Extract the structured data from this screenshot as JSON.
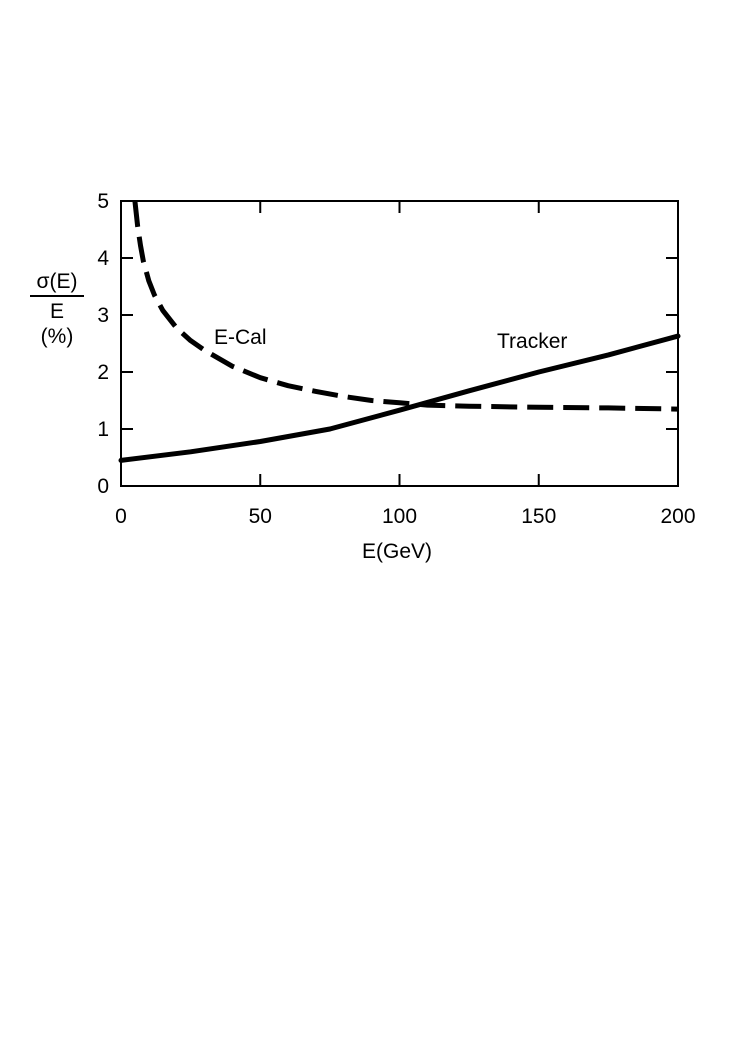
{
  "chart_data": {
    "type": "line",
    "xlabel": "E(GeV)",
    "ylabel": {
      "numerator": "σ(E)",
      "denominator": "E",
      "unit": "(%)"
    },
    "xlim": [
      0,
      200
    ],
    "ylim": [
      0,
      5
    ],
    "x_ticks": [
      "0",
      "50",
      "100",
      "150",
      "200"
    ],
    "y_ticks": [
      "0",
      "1",
      "2",
      "3",
      "4",
      "5"
    ],
    "grid": false,
    "series": [
      {
        "name": "E-Cal",
        "style": "dashed",
        "x": [
          5,
          6,
          7,
          8,
          10,
          12,
          15,
          20,
          25,
          30,
          40,
          50,
          60,
          70,
          80,
          90,
          100,
          110,
          125,
          150,
          175,
          200
        ],
        "y": [
          5.0,
          4.55,
          4.22,
          3.95,
          3.6,
          3.35,
          3.08,
          2.77,
          2.55,
          2.38,
          2.1,
          1.9,
          1.76,
          1.66,
          1.57,
          1.5,
          1.46,
          1.42,
          1.4,
          1.38,
          1.37,
          1.35
        ]
      },
      {
        "name": "Tracker",
        "style": "solid",
        "x": [
          0,
          25,
          50,
          75,
          100,
          125,
          150,
          175,
          200
        ],
        "y": [
          0.45,
          0.6,
          0.78,
          1.0,
          1.33,
          1.67,
          2.0,
          2.3,
          2.63
        ]
      }
    ],
    "colors": {
      "line": "#000000",
      "axis": "#000000",
      "background": "#ffffff"
    }
  }
}
